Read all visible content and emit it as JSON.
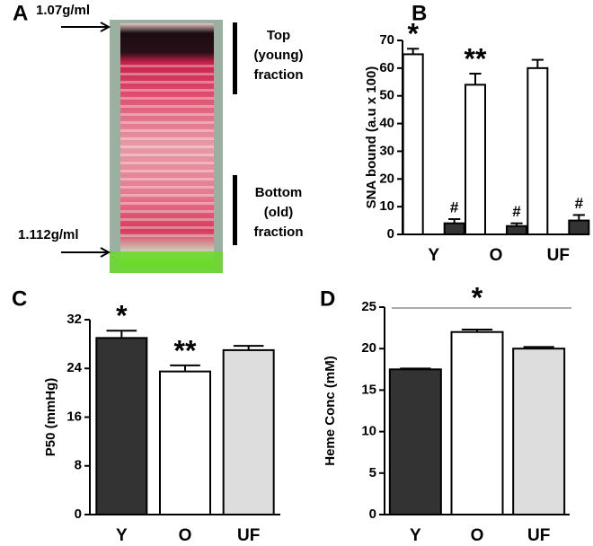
{
  "panel_a": {
    "panel_label": "A",
    "density_top": "1.07g/ml",
    "density_bottom": "1.112g/ml",
    "top_label": [
      "Top",
      "(young)",
      "fraction"
    ],
    "bottom_label": [
      "Bottom",
      "(old)",
      "fraction"
    ]
  },
  "chart_data": [
    {
      "type": "bar",
      "panel_label": "B",
      "ylabel": "SNA bound (a.u x 100)",
      "categories": [
        "Y",
        "O",
        "UF"
      ],
      "series": [
        {
          "color": "#ffffff",
          "values": [
            65,
            54,
            60
          ],
          "errors": [
            2,
            4,
            3
          ],
          "annotations": [
            "*",
            "**",
            null
          ]
        },
        {
          "color": "#333333",
          "values": [
            4,
            3,
            5
          ],
          "errors": [
            1.5,
            1,
            2
          ],
          "annotations": [
            "#",
            "#",
            "#"
          ]
        }
      ],
      "ylim": [
        0,
        70
      ],
      "yticks": [
        0,
        10,
        20,
        30,
        40,
        50,
        60,
        70
      ]
    },
    {
      "type": "bar",
      "panel_label": "C",
      "ylabel": "P50 (mmHg)",
      "categories": [
        "Y",
        "O",
        "UF"
      ],
      "values": [
        29,
        23.5,
        27
      ],
      "errors": [
        1.2,
        1,
        0.7
      ],
      "colors": [
        "#333333",
        "#ffffff",
        "#dddddd"
      ],
      "annotations": [
        "*",
        "**",
        null
      ],
      "ylim": [
        0,
        32
      ],
      "yticks": [
        0,
        8,
        16,
        24,
        32
      ]
    },
    {
      "type": "bar",
      "panel_label": "D",
      "ylabel": "Heme Conc (mM)",
      "categories": [
        "Y",
        "O",
        "UF"
      ],
      "values": [
        17.5,
        22,
        20
      ],
      "errors": [
        0.1,
        0.3,
        0.2
      ],
      "colors": [
        "#333333",
        "#ffffff",
        "#dddddd"
      ],
      "annotation": "*",
      "ylim": [
        0,
        25
      ],
      "yticks": [
        0,
        5,
        10,
        15,
        20,
        25
      ]
    }
  ]
}
